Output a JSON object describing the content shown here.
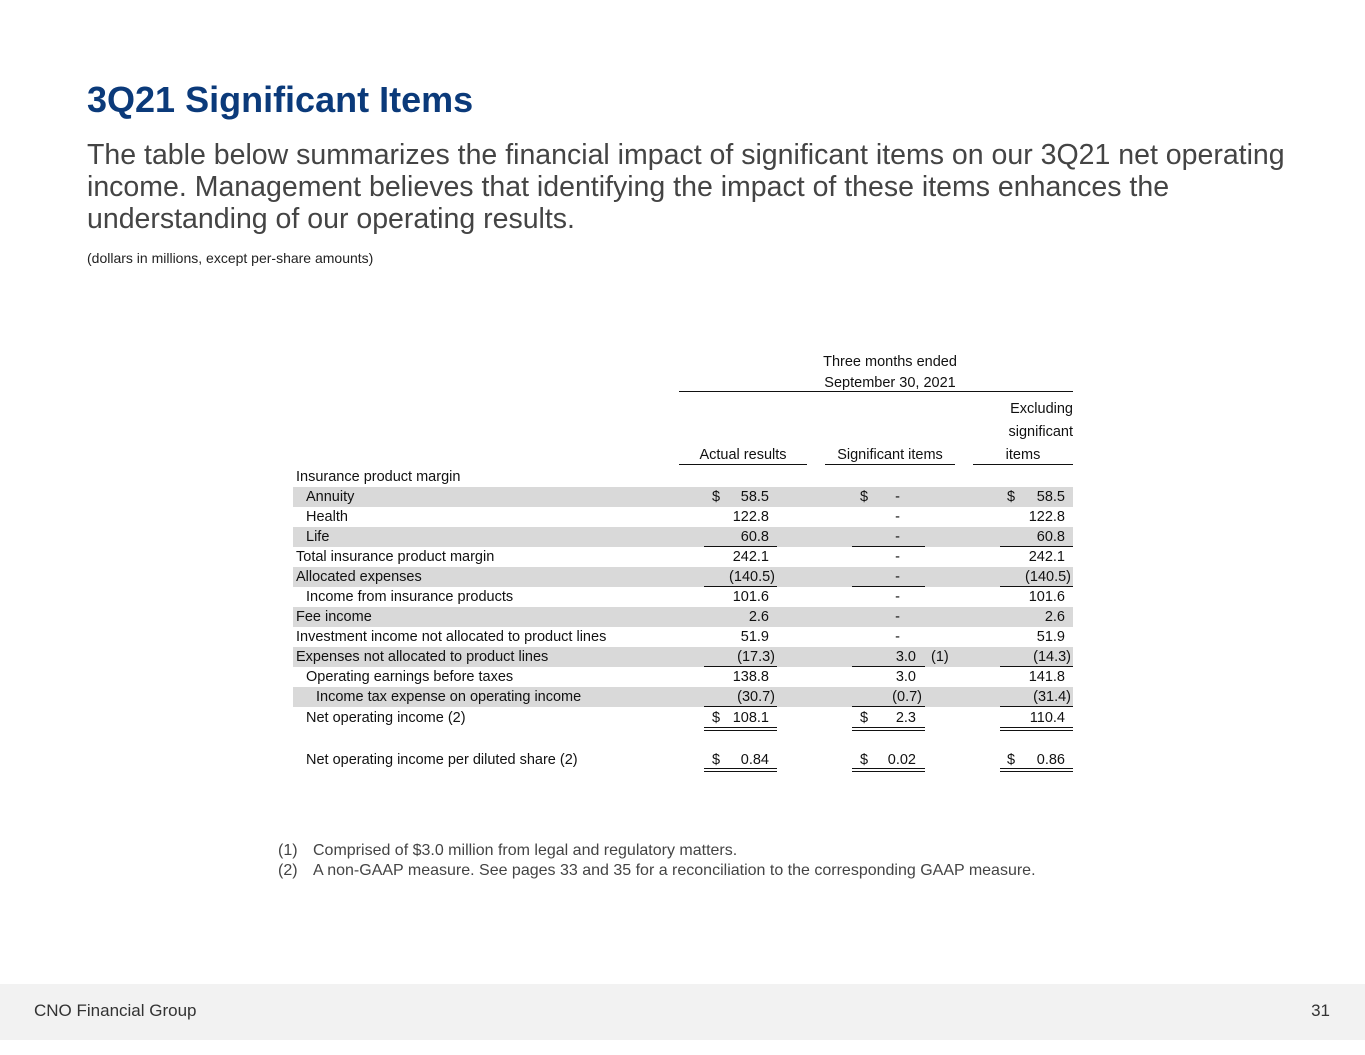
{
  "title": "3Q21 Significant Items",
  "intro": "The table below summarizes the financial impact of significant items on our 3Q21 net operating income. Management believes that identifying the impact of these items enhances the understanding of our operating results.",
  "units_note": "(dollars in millions, except per-share amounts)",
  "table": {
    "period_header": [
      "Three months ended",
      "September 30, 2021"
    ],
    "columns": {
      "actual": "Actual results",
      "significant": "Significant items",
      "excluding": [
        "Excluding",
        "significant",
        "items"
      ]
    },
    "section_label": "Insurance product margin",
    "rows": [
      {
        "label": "Annuity",
        "actual": "58.5",
        "significant": "-",
        "excluding": "58.5"
      },
      {
        "label": "Health",
        "actual": "122.8",
        "significant": "-",
        "excluding": "122.8"
      },
      {
        "label": "Life",
        "actual": "60.8",
        "significant": "-",
        "excluding": "60.8"
      },
      {
        "label": "Total insurance product margin",
        "actual": "242.1",
        "significant": "-",
        "excluding": "242.1"
      },
      {
        "label": "Allocated expenses",
        "actual": "(140.5)",
        "significant": "-",
        "excluding": "(140.5)"
      },
      {
        "label": "Income from insurance products",
        "actual": "101.6",
        "significant": "-",
        "excluding": "101.6"
      },
      {
        "label": "Fee income",
        "actual": "2.6",
        "significant": "-",
        "excluding": "2.6"
      },
      {
        "label": "Investment income not allocated to product lines",
        "actual": "51.9",
        "significant": "-",
        "excluding": "51.9"
      },
      {
        "label": "Expenses not allocated to product lines",
        "actual": "(17.3)",
        "significant": "3.0",
        "note": "(1)",
        "excluding": "(14.3)"
      },
      {
        "label": "Operating earnings before taxes",
        "actual": "138.8",
        "significant": "3.0",
        "excluding": "141.8"
      },
      {
        "label": "Income tax expense on operating income",
        "actual": "(30.7)",
        "significant": "(0.7)",
        "excluding": "(31.4)"
      },
      {
        "label": "Net operating income (2)",
        "actual": "108.1",
        "significant": "2.3",
        "excluding": "110.4"
      },
      {
        "label": "Net operating income per diluted share (2)",
        "actual": "0.84",
        "significant": "0.02",
        "excluding": "0.86"
      }
    ],
    "currency": "$"
  },
  "footnotes": [
    {
      "mark": "(1)",
      "text": "Comprised of $3.0 million from legal and regulatory matters."
    },
    {
      "mark": "(2)",
      "text": "A non-GAAP measure. See pages 33 and 35 for a reconciliation to the corresponding GAAP measure."
    }
  ],
  "footer": {
    "company": "CNO Financial Group",
    "page": "31"
  }
}
